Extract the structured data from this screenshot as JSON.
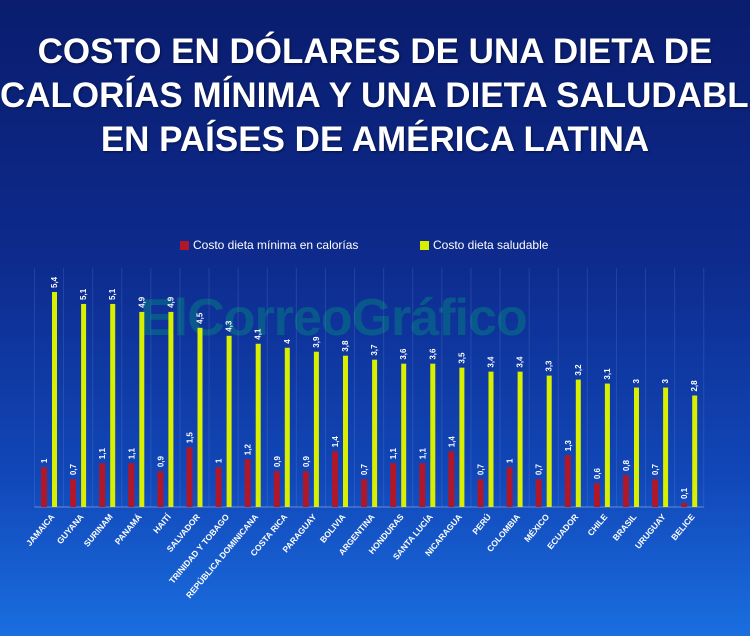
{
  "title_lines": [
    "COSTO EN DÓLARES DE UNA DIETA DE",
    "CALORÍAS MÍNIMA Y UNA DIETA SALUDABLE",
    "EN PAÍSES DE AMÉRICA LATINA"
  ],
  "watermark": "ElCorreoGráfico",
  "colors": {
    "min_series": "#b0182a",
    "healthy_series": "#d8f000",
    "label_text": "#ffffff"
  },
  "chart_data": {
    "type": "bar",
    "title": "COSTO EN DÓLARES DE UNA DIETA DE CALORÍAS MÍNIMA Y UNA DIETA SALUDABLE EN PAÍSES DE AMÉRICA LATINA",
    "legend_position": "top-center",
    "grid": false,
    "categories": [
      "JAMAICA",
      "GUYANA",
      "SURINAM",
      "PANAMÁ",
      "HAITÍ",
      "SALVADOR",
      "TRINIDAD Y TOBAGO",
      "REPÚBLICA DOMINICANA",
      "COSTA RICA",
      "PARAGUAY",
      "BOLIVIA",
      "ARGENTINA",
      "HONDURAS",
      "SANTA LUCÍA",
      "NICARAGUA",
      "PERÚ",
      "COLOMBIA",
      "MÉXICO",
      "ECUADOR",
      "CHILE",
      "BRASIL",
      "URUGUAY",
      "BELICE"
    ],
    "series": [
      {
        "name": "Costo dieta mínima en calorías",
        "values": [
          1,
          0.7,
          1.1,
          1.1,
          0.9,
          1.5,
          1,
          1.2,
          0.9,
          0.9,
          1.4,
          0.7,
          1.1,
          1.1,
          1.4,
          0.7,
          1,
          0.7,
          1.3,
          0.6,
          0.8,
          0.7,
          0.1
        ],
        "labels": [
          "1",
          "0,7",
          "1,1",
          "1,1",
          "0,9",
          "1,5",
          "1",
          "1,2",
          "0,9",
          "0,9",
          "1,4",
          "0,7",
          "1,1",
          "1,1",
          "1,4",
          "0,7",
          "1",
          "0,7",
          "1,3",
          "0,6",
          "0,8",
          "0,7",
          "0,1"
        ]
      },
      {
        "name": "Costo dieta saludable",
        "values": [
          5.4,
          5.1,
          5.1,
          4.9,
          4.9,
          4.5,
          4.3,
          4.1,
          4,
          3.9,
          3.8,
          3.7,
          3.6,
          3.6,
          3.5,
          3.4,
          3.4,
          3.3,
          3.2,
          3.1,
          3,
          3,
          2.8
        ],
        "labels": [
          "5,4",
          "5,1",
          "5,1",
          "4,9",
          "4,9",
          "4,5",
          "4,3",
          "4,1",
          "4",
          "3,9",
          "3,8",
          "3,7",
          "3,6",
          "3,6",
          "3,5",
          "3,4",
          "3,4",
          "3,3",
          "3,2",
          "3,1",
          "3",
          "3",
          "2,8"
        ]
      }
    ],
    "ylim": [
      0,
      5.4
    ]
  }
}
